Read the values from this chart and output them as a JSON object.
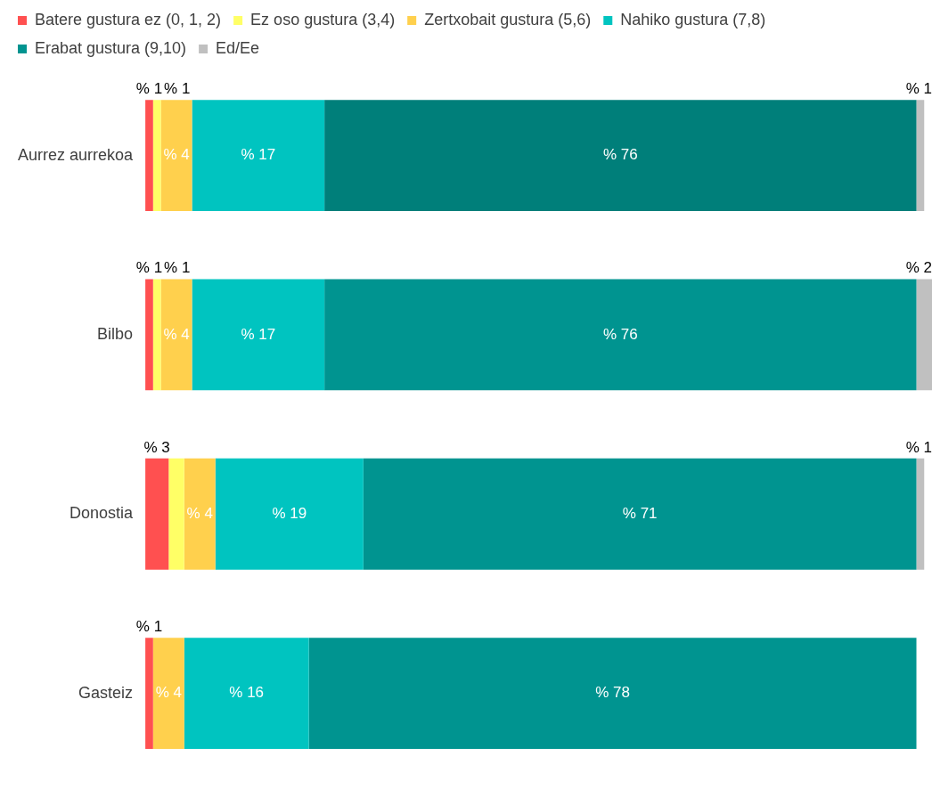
{
  "chart_data": {
    "type": "bar",
    "orientation": "horizontal",
    "stacked": true,
    "legend": "top",
    "tick_labels": "y",
    "grid": false,
    "xlim": [
      0,
      101
    ],
    "categories": [
      "Aurrez aurrekoa",
      "Bilbo",
      "Donostia",
      "Gasteiz"
    ],
    "series": [
      {
        "name": "Batere gustura ez (0, 1, 2)",
        "color": "#ff5050",
        "values": [
          1,
          1,
          3,
          1
        ],
        "value_labels": [
          "% 1",
          "% 1",
          "% 3",
          "% 1"
        ]
      },
      {
        "name": "Ez oso gustura (3,4)",
        "color": "#ffff66",
        "values": [
          1,
          1,
          2,
          null
        ],
        "value_labels": [
          "% 1",
          "% 1",
          null,
          null
        ]
      },
      {
        "name": "Zertxobait gustura (5,6)",
        "color": "#ffd04d",
        "values": [
          4,
          4,
          4,
          4
        ],
        "value_labels": [
          "% 4",
          "% 4",
          "% 4",
          "% 4"
        ]
      },
      {
        "name": "Nahiko gustura (7,8)",
        "color": "#00c4c0",
        "values": [
          17,
          17,
          19,
          16
        ],
        "value_labels": [
          "% 17",
          "% 17",
          "% 19",
          "% 16"
        ]
      },
      {
        "name": "Erabat gustura (9,10)",
        "color": "#009490",
        "colors": [
          "#007f7a",
          "#009490",
          "#009490",
          "#009490"
        ],
        "values": [
          76,
          76,
          71,
          78
        ],
        "value_labels": [
          "% 76",
          "% 76",
          "% 71",
          "% 78"
        ]
      },
      {
        "name": "Ed/Ee",
        "color": "#c0c0c0",
        "values": [
          1,
          2,
          1,
          null
        ],
        "value_labels": [
          "% 1",
          "% 2",
          "% 1",
          null
        ]
      }
    ]
  }
}
